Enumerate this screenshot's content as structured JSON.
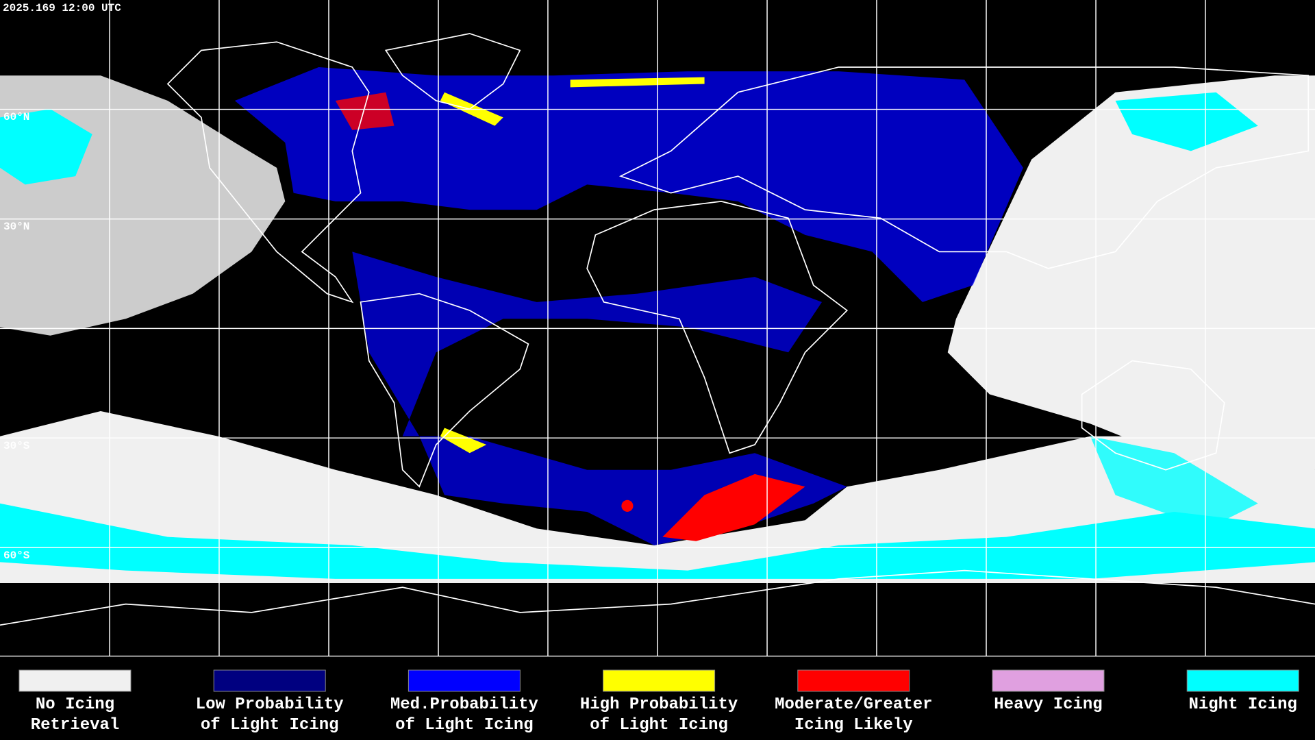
{
  "timestamp": "2025.169 12:00 UTC",
  "latitude_labels": [
    "60°N",
    "30°N",
    "30°S",
    "60°S"
  ],
  "legend": [
    {
      "label_lines": [
        "No Icing",
        "Retrieval"
      ],
      "color": "#f0f0f0"
    },
    {
      "label_lines": [
        "Low Probability",
        "of Light Icing"
      ],
      "color": "#000080"
    },
    {
      "label_lines": [
        "Med.Probability",
        "of Light Icing"
      ],
      "color": "#0000ff"
    },
    {
      "label_lines": [
        "High Probability",
        "of Light Icing"
      ],
      "color": "#ffff00"
    },
    {
      "label_lines": [
        "Moderate/Greater",
        "Icing Likely"
      ],
      "color": "#ff0000"
    },
    {
      "label_lines": [
        "Heavy Icing"
      ],
      "color": "#e0a0e0"
    },
    {
      "label_lines": [
        "Night Icing"
      ],
      "color": "#00ffff"
    }
  ]
}
